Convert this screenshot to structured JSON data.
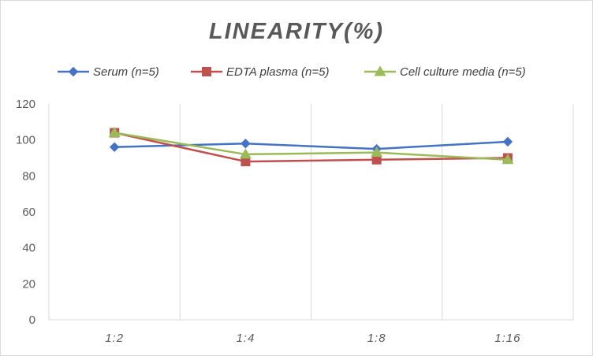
{
  "chart_data": {
    "type": "line",
    "title": "LINEARITY(%)",
    "xlabel": "",
    "ylabel": "",
    "categories": [
      "1:2",
      "1:4",
      "1:8",
      "1:16"
    ],
    "ylim": [
      0,
      120
    ],
    "yticks": [
      0,
      20,
      40,
      60,
      80,
      100,
      120
    ],
    "grid": {
      "vertical": true,
      "horizontal": false
    },
    "legend_position": "top",
    "series": [
      {
        "name": "Serum (n=5)",
        "values": [
          96,
          98,
          95,
          99
        ],
        "color": "#4472C4",
        "marker": "diamond"
      },
      {
        "name": "EDTA plasma (n=5)",
        "values": [
          104,
          88,
          89,
          90
        ],
        "color": "#C0504D",
        "marker": "square"
      },
      {
        "name": "Cell culture media (n=5)",
        "values": [
          104,
          92,
          93,
          89
        ],
        "color": "#9BBB59",
        "marker": "triangle"
      }
    ]
  }
}
